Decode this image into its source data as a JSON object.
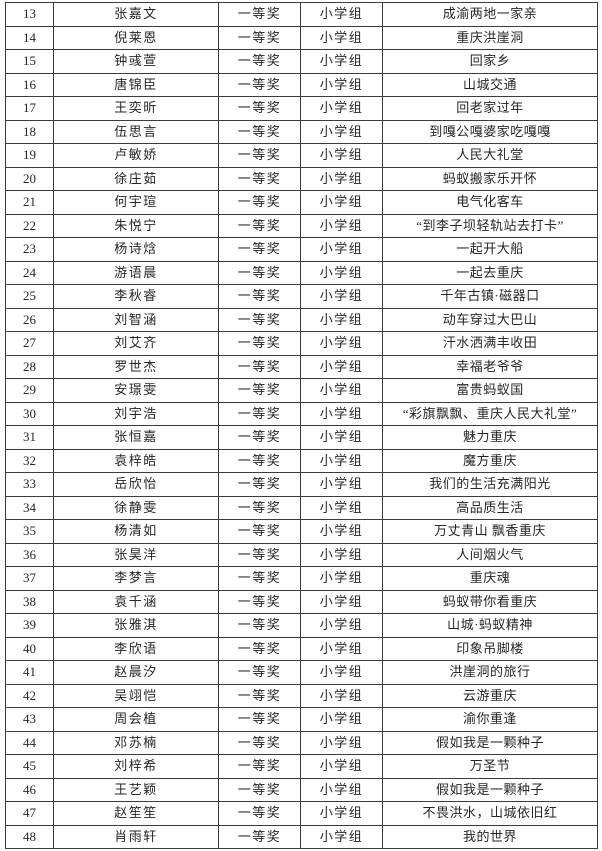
{
  "document": {
    "background_color": "#ffffff",
    "border_color": "#3c3c3c",
    "text_color": "#262626"
  },
  "table": {
    "rows": [
      {
        "no": "13",
        "name": "张嘉文",
        "award": "一等奖",
        "group": "小学组",
        "title": "成渝两地一家亲"
      },
      {
        "no": "14",
        "name": "倪莱恩",
        "award": "一等奖",
        "group": "小学组",
        "title": "重庆洪崖洞"
      },
      {
        "no": "15",
        "name": "钟彧萱",
        "award": "一等奖",
        "group": "小学组",
        "title": "回家乡"
      },
      {
        "no": "16",
        "name": "唐锦臣",
        "award": "一等奖",
        "group": "小学组",
        "title": "山城交通"
      },
      {
        "no": "17",
        "name": "王奕昕",
        "award": "一等奖",
        "group": "小学组",
        "title": "回老家过年"
      },
      {
        "no": "18",
        "name": "伍思言",
        "award": "一等奖",
        "group": "小学组",
        "title": "到嘎公嘎婆家吃嘎嘎"
      },
      {
        "no": "19",
        "name": "卢敏娇",
        "award": "一等奖",
        "group": "小学组",
        "title": "人民大礼堂"
      },
      {
        "no": "20",
        "name": "徐庄茹",
        "award": "一等奖",
        "group": "小学组",
        "title": "蚂蚁搬家乐开怀"
      },
      {
        "no": "21",
        "name": "何宇瑄",
        "award": "一等奖",
        "group": "小学组",
        "title": "电气化客车"
      },
      {
        "no": "22",
        "name": "朱悦宁",
        "award": "一等奖",
        "group": "小学组",
        "title": "“到李子坝轻轨站去打卡”"
      },
      {
        "no": "23",
        "name": "杨诗焓",
        "award": "一等奖",
        "group": "小学组",
        "title": "一起开大船"
      },
      {
        "no": "24",
        "name": "游语晨",
        "award": "一等奖",
        "group": "小学组",
        "title": "一起去重庆"
      },
      {
        "no": "25",
        "name": "李秋睿",
        "award": "一等奖",
        "group": "小学组",
        "title": "千年古镇·磁器口"
      },
      {
        "no": "26",
        "name": "刘智涵",
        "award": "一等奖",
        "group": "小学组",
        "title": "动车穿过大巴山"
      },
      {
        "no": "27",
        "name": "刘艾齐",
        "award": "一等奖",
        "group": "小学组",
        "title": "汗水洒满丰收田"
      },
      {
        "no": "28",
        "name": "罗世杰",
        "award": "一等奖",
        "group": "小学组",
        "title": "幸福老爷爷"
      },
      {
        "no": "29",
        "name": "安璟雯",
        "award": "一等奖",
        "group": "小学组",
        "title": "富贵蚂蚁国"
      },
      {
        "no": "30",
        "name": "刘宇浩",
        "award": "一等奖",
        "group": "小学组",
        "title": "“彩旗飘飘、重庆人民大礼堂”"
      },
      {
        "no": "31",
        "name": "张恒嘉",
        "award": "一等奖",
        "group": "小学组",
        "title": "魅力重庆"
      },
      {
        "no": "32",
        "name": "袁梓皓",
        "award": "一等奖",
        "group": "小学组",
        "title": "魔方重庆"
      },
      {
        "no": "33",
        "name": "岳欣怡",
        "award": "一等奖",
        "group": "小学组",
        "title": "我们的生活充满阳光"
      },
      {
        "no": "34",
        "name": "徐静雯",
        "award": "一等奖",
        "group": "小学组",
        "title": "高品质生活"
      },
      {
        "no": "35",
        "name": "杨清如",
        "award": "一等奖",
        "group": "小学组",
        "title": "万丈青山 飘香重庆"
      },
      {
        "no": "36",
        "name": "张昊洋",
        "award": "一等奖",
        "group": "小学组",
        "title": "人间烟火气"
      },
      {
        "no": "37",
        "name": "李梦言",
        "award": "一等奖",
        "group": "小学组",
        "title": "重庆魂"
      },
      {
        "no": "38",
        "name": "袁千涵",
        "award": "一等奖",
        "group": "小学组",
        "title": "蚂蚁带你看重庆"
      },
      {
        "no": "39",
        "name": "张雅淇",
        "award": "一等奖",
        "group": "小学组",
        "title": "山城·蚂蚁精神"
      },
      {
        "no": "40",
        "name": "李欣语",
        "award": "一等奖",
        "group": "小学组",
        "title": "印象吊脚楼"
      },
      {
        "no": "41",
        "name": "赵晨汐",
        "award": "一等奖",
        "group": "小学组",
        "title": "洪崖洞的旅行"
      },
      {
        "no": "42",
        "name": "吴翊恺",
        "award": "一等奖",
        "group": "小学组",
        "title": "云游重庆"
      },
      {
        "no": "43",
        "name": "周会植",
        "award": "一等奖",
        "group": "小学组",
        "title": "渝你重逢"
      },
      {
        "no": "44",
        "name": "邓苏楠",
        "award": "一等奖",
        "group": "小学组",
        "title": "假如我是一颗种子"
      },
      {
        "no": "45",
        "name": "刘梓希",
        "award": "一等奖",
        "group": "小学组",
        "title": "万圣节"
      },
      {
        "no": "46",
        "name": "王艺颖",
        "award": "一等奖",
        "group": "小学组",
        "title": "假如我是一颗种子"
      },
      {
        "no": "47",
        "name": "赵笙笙",
        "award": "一等奖",
        "group": "小学组",
        "title": "不畏洪水，山城依旧红"
      },
      {
        "no": "48",
        "name": "肖雨轩",
        "award": "一等奖",
        "group": "小学组",
        "title": "我的世界"
      }
    ]
  }
}
